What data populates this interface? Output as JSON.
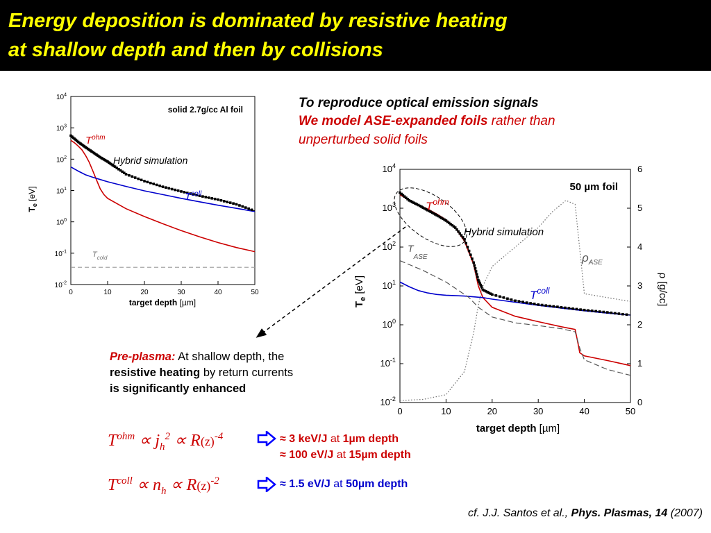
{
  "slide": {
    "title_line1": "Energy deposition is dominated by resistive heating",
    "title_line2": "at shallow depth and then by collisions",
    "intro_line1": "To reproduce optical emission signals",
    "intro_line2_a": "We model ASE-expanded foils",
    "intro_line2_b": " rather than",
    "intro_line3": "unperturbed solid foils",
    "preplasma_label": "Pre-plasma:",
    "preplasma_text1": " At shallow depth, the",
    "preplasma_bold2": "resistive heating",
    "preplasma_text2": " by return currents",
    "preplasma_bold3": "is significantly enhanced",
    "formula_ohm_T": "T",
    "formula_ohm_sup": "ohm",
    "formula_ohm_rest": " ∝ j",
    "formula_ohm_sub": "h",
    "formula_ohm_sup2": "2",
    "formula_ohm_R": " ∝ R",
    "formula_ohm_z": "(z)",
    "formula_ohm_exp": "-4",
    "formula_coll_T": "T",
    "formula_coll_sup": "coll",
    "formula_coll_rest": " ∝ n",
    "formula_coll_sub": "h",
    "formula_coll_R": " ∝ R",
    "formula_coll_z": "(z)",
    "formula_coll_exp": "-2",
    "result1_a": "≈ 3 keV/J",
    "result1_b": " at ",
    "result1_c": "1µm depth",
    "result2_a": "≈ 100 eV/J",
    "result2_b": " at ",
    "result2_c": "15µm depth",
    "result3_a": "≈ 1.5 eV/J",
    "result3_b": " at ",
    "result3_c": "50µm depth",
    "cite_a": "cf. J.J. Santos et al., ",
    "cite_b": "Phys. Plasmas",
    "cite_c": ", 14",
    "cite_d": " (2007)"
  },
  "colors": {
    "title": "#ffff00",
    "ohm": "#cc0000",
    "coll": "#0000cc",
    "arrow": "#0000ff"
  },
  "icons": {
    "result_arrow": "hollow-right-arrow-icon"
  },
  "chart_data": [
    {
      "type": "line",
      "title": "solid 2.7g/cc Al foil",
      "xlabel_bold": "target depth",
      "xlabel_unit": " [µm]",
      "ylabel_main": "T",
      "ylabel_sub": "e",
      "ylabel_unit": " [eV]",
      "xlim": [
        0,
        50
      ],
      "ylim_log10": [
        -2,
        4
      ],
      "yscale": "log",
      "x_ticks": [
        "0",
        "10",
        "20",
        "30",
        "40",
        "50"
      ],
      "y_tick_base": "10",
      "y_tick_exps": [
        "-2",
        "-1",
        "0",
        "1",
        "2",
        "3",
        "4"
      ],
      "annotations": {
        "ohm_T": "T",
        "ohm_sup": "ohm",
        "coll_T": "T",
        "coll_sup": "coll",
        "cold_T": "T",
        "cold_sub": "cold",
        "hybrid": "Hybrid simulation"
      },
      "series": [
        {
          "key": "ohm",
          "color": "#cc0000",
          "x": [
            0,
            1,
            2,
            3,
            4,
            5,
            6,
            7,
            8,
            9,
            10,
            15,
            20,
            25,
            30,
            35,
            40,
            45,
            50
          ],
          "log10_y": [
            2.6,
            2.52,
            2.42,
            2.3,
            2.12,
            1.9,
            1.62,
            1.33,
            1.05,
            0.87,
            0.75,
            0.42,
            0.17,
            -0.06,
            -0.28,
            -0.48,
            -0.66,
            -0.82,
            -0.95
          ]
        },
        {
          "key": "coll",
          "color": "#0000cc",
          "x": [
            0,
            2,
            4,
            6,
            8,
            10,
            15,
            20,
            25,
            30,
            35,
            40,
            45,
            50
          ],
          "log10_y": [
            1.75,
            1.62,
            1.5,
            1.42,
            1.35,
            1.28,
            1.13,
            0.99,
            0.87,
            0.75,
            0.64,
            0.53,
            0.43,
            0.33
          ]
        },
        {
          "key": "hybrid",
          "color": "#000000",
          "x": [
            0,
            2,
            4,
            6,
            8,
            10,
            12,
            15,
            20,
            25,
            30,
            35,
            40,
            45,
            50
          ],
          "log10_y": [
            2.75,
            2.55,
            2.38,
            2.22,
            2.06,
            1.92,
            1.76,
            1.52,
            1.3,
            1.12,
            0.97,
            0.83,
            0.71,
            0.56,
            0.35
          ]
        },
        {
          "key": "cold",
          "color": "#999999",
          "x": [
            0,
            50
          ],
          "log10_y": [
            -1.45,
            -1.45
          ]
        }
      ]
    },
    {
      "type": "line",
      "title": "50 µm foil",
      "xlabel_bold": "target depth",
      "xlabel_unit": " [µm]",
      "ylabel_main": "T",
      "ylabel_sub": "e",
      "ylabel_unit": " [eV]",
      "ylabel_right": "ρ [g/cc]",
      "xlim": [
        0,
        50
      ],
      "ylim_log10": [
        -2,
        4
      ],
      "ylim_right": [
        0,
        6
      ],
      "yscale": "log",
      "x_ticks": [
        "0",
        "10",
        "20",
        "30",
        "40",
        "50"
      ],
      "y_tick_base": "10",
      "y_tick_exps": [
        "-2",
        "-1",
        "0",
        "1",
        "2",
        "3",
        "4"
      ],
      "y_right_ticks": [
        "0",
        "1",
        "2",
        "3",
        "4",
        "5",
        "6"
      ],
      "annotations": {
        "ohm_T": "T",
        "ohm_sup": "ohm",
        "coll_T": "T",
        "coll_sup": "coll",
        "ase_T": "T",
        "ase_sub": "ASE",
        "rho": "ρ",
        "rho_sub": "ASE",
        "hybrid": "Hybrid simulation"
      },
      "series": [
        {
          "key": "ohm",
          "color": "#cc0000",
          "x": [
            0,
            2,
            4,
            6,
            8,
            10,
            12,
            14,
            16,
            17,
            18,
            20,
            25,
            30,
            35,
            38,
            38.5,
            39,
            40,
            45,
            50
          ],
          "log10_y": [
            3.35,
            3.2,
            3.08,
            2.98,
            2.85,
            2.7,
            2.5,
            2.15,
            1.55,
            1.0,
            0.7,
            0.45,
            0.22,
            0.08,
            -0.05,
            -0.12,
            -0.4,
            -0.72,
            -0.8,
            -0.92,
            -1.05
          ]
        },
        {
          "key": "coll",
          "color": "#0000cc",
          "x": [
            0,
            2,
            4,
            6,
            8,
            10,
            14,
            18,
            20,
            25,
            30,
            35,
            40,
            45,
            50
          ],
          "log10_y": [
            1.1,
            0.98,
            0.88,
            0.82,
            0.78,
            0.76,
            0.74,
            0.7,
            0.66,
            0.58,
            0.5,
            0.43,
            0.36,
            0.3,
            0.25
          ]
        },
        {
          "key": "hybrid",
          "color": "#000000",
          "x": [
            0,
            2,
            4,
            6,
            8,
            10,
            12,
            14,
            16,
            17,
            18,
            20,
            25,
            30,
            35,
            40,
            45,
            50
          ],
          "log10_y": [
            3.4,
            3.2,
            3.08,
            2.95,
            2.82,
            2.68,
            2.5,
            2.2,
            1.6,
            1.15,
            0.9,
            0.78,
            0.62,
            0.52,
            0.45,
            0.38,
            0.32,
            0.25
          ]
        },
        {
          "key": "ase",
          "color": "#555555",
          "x": [
            0,
            5,
            10,
            15,
            17,
            20,
            25,
            30,
            35,
            38,
            39,
            40,
            45,
            50
          ],
          "log10_y": [
            1.65,
            1.4,
            1.1,
            0.7,
            0.45,
            0.2,
            0.05,
            -0.02,
            -0.1,
            -0.18,
            -0.6,
            -0.9,
            -1.15,
            -1.3
          ]
        },
        {
          "key": "rho",
          "color": "#777777",
          "x": [
            0,
            5,
            10,
            14,
            16,
            17,
            18,
            20,
            25,
            30,
            33,
            36,
            38,
            40,
            50
          ],
          "rho": [
            0.05,
            0.08,
            0.2,
            0.8,
            1.8,
            2.5,
            3.0,
            3.5,
            4.0,
            4.5,
            4.9,
            5.2,
            5.1,
            2.8,
            2.6
          ]
        }
      ]
    }
  ]
}
